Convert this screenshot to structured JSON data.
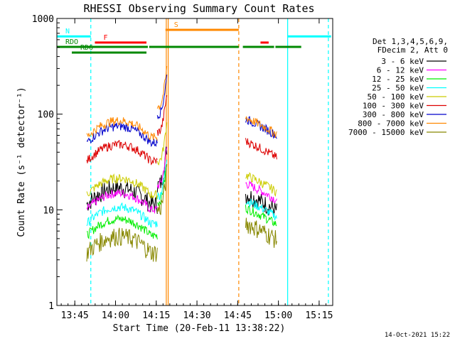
{
  "chart_data": {
    "type": "line",
    "title": "RHESSI Observing Summary Count Rates",
    "xlabel": "Start Time (20-Feb-11 13:38:22)",
    "ylabel": "Count Rate (s⁻¹ detector⁻¹)",
    "x_unit": "minutes",
    "xlim": [
      "13:38:22",
      "15:20:00"
    ],
    "x_range_min": [
      0,
      101.6
    ],
    "ylim": [
      1,
      1000
    ],
    "yscale": "log",
    "x_ticks": [
      "13:45",
      "14:00",
      "14:15",
      "14:30",
      "14:45",
      "15:00",
      "15:15"
    ],
    "x_tick_min": [
      6.6,
      21.6,
      36.6,
      51.6,
      66.6,
      81.6,
      96.6
    ],
    "y_ticks": [
      {
        "label": "1",
        "value": 1
      },
      {
        "label": "10",
        "value": 10
      },
      {
        "label": "100",
        "value": 100
      },
      {
        "label": "1000",
        "value": 1000
      }
    ],
    "legend": {
      "header": [
        "Det 1,3,4,5,6,9,",
        "FDecim 2, Att 0"
      ],
      "position": "right"
    },
    "series": [
      {
        "name": "3 - 6 keV",
        "color": "#000000"
      },
      {
        "name": "6 - 12 keV",
        "color": "#ff00ff"
      },
      {
        "name": "12 - 25 keV",
        "color": "#00ee00"
      },
      {
        "name": "25 - 50 keV",
        "color": "#00ffff"
      },
      {
        "name": "50 - 100 keV",
        "color": "#cccc00"
      },
      {
        "name": "100 - 300 keV",
        "color": "#dd0000"
      },
      {
        "name": "300 - 800 keV",
        "color": "#0000cc"
      },
      {
        "name": "800 - 7000 keV",
        "color": "#ff8800"
      },
      {
        "name": "7000 - 15000 keV",
        "color": "#888800"
      }
    ],
    "segments": [
      {
        "start": 11.0,
        "end": 37.0,
        "levels": [
          16,
          14,
          7.5,
          10,
          20,
          45,
          70,
          80,
          5
        ],
        "bump": 0.25
      },
      {
        "start": 37.0,
        "end": 40.5,
        "levels": [
          18,
          18,
          12,
          14,
          32,
          65,
          100,
          120,
          10
        ],
        "bump": 1.5
      },
      {
        "start": 69.5,
        "end": 81.0,
        "levels": [
          14,
          18,
          10,
          12,
          22,
          50,
          85,
          88,
          7
        ],
        "bump": 0.05
      }
    ],
    "flag_bars": [
      {
        "label": "N",
        "color": "#00ffff",
        "ranges": [
          [
            0,
            12.5
          ],
          [
            85,
            101
          ]
        ],
        "y_rate": 650
      },
      {
        "label": "F",
        "color": "#ff0000",
        "ranges": [
          [
            14,
            33
          ]
        ],
        "y_rate": 560
      },
      {
        "label": "S",
        "color": "#ff8800",
        "ranges": [
          [
            40,
            67
          ]
        ],
        "y_rate": 760
      },
      {
        "label": "",
        "color": "#ff0000",
        "ranges": [
          [
            75,
            78
          ]
        ],
        "y_rate": 560
      },
      {
        "label": "RDO",
        "color": "#008800",
        "ranges": [
          [
            0,
            33.5
          ],
          [
            34,
            67
          ],
          [
            68.5,
            80
          ],
          [
            80.5,
            90
          ]
        ],
        "y_rate": 505
      },
      {
        "label": "RD6",
        "color": "#008800",
        "ranges": [
          [
            5.5,
            33
          ]
        ],
        "y_rate": 440
      }
    ],
    "vlines": [
      {
        "x": 12.5,
        "color": "#00ffff",
        "style": "dashed"
      },
      {
        "x": 85.0,
        "color": "#00ffff",
        "style": "solid"
      },
      {
        "x": 100.0,
        "color": "#00ffff",
        "style": "dashed"
      },
      {
        "x": 40.3,
        "color": "#ff8800",
        "style": "solid"
      },
      {
        "x": 41.0,
        "color": "#ff8800",
        "style": "solid"
      },
      {
        "x": 67.0,
        "color": "#ff8800",
        "style": "dashed"
      }
    ]
  },
  "footer": {
    "timestamp": "14-Oct-2021 15:22"
  }
}
